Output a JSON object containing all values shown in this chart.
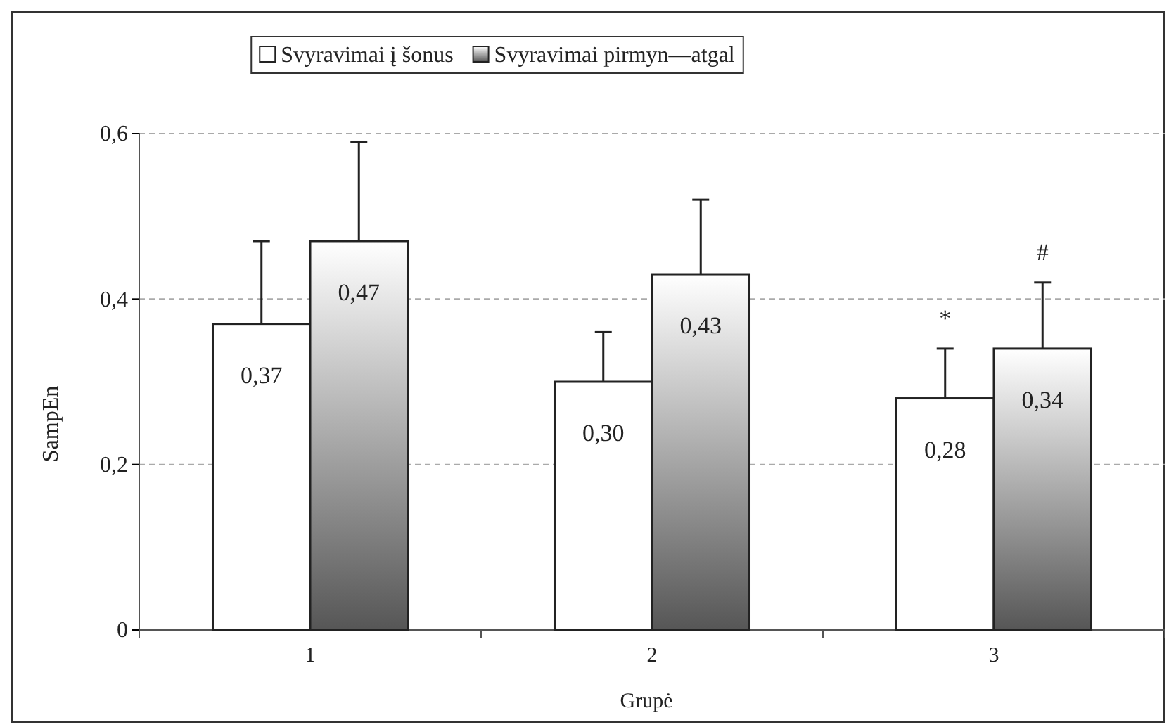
{
  "chart_data": {
    "type": "bar",
    "xlabel": "Grupė",
    "ylabel": "SampEn",
    "categories": [
      "1",
      "2",
      "3"
    ],
    "series": [
      {
        "name": "Svyravimai į šonus",
        "color": "#ffffff",
        "values": [
          0.37,
          0.3,
          0.28
        ],
        "errors": [
          0.1,
          0.06,
          0.06
        ],
        "value_labels": [
          "0,37",
          "0,30",
          "0,28"
        ]
      },
      {
        "name": "Svyravimai pirmyn—atgal",
        "color": "#888888",
        "values": [
          0.47,
          0.43,
          0.34
        ],
        "errors": [
          0.12,
          0.09,
          0.08
        ],
        "value_labels": [
          "0,47",
          "0,43",
          "0,34"
        ]
      }
    ],
    "ylim": [
      0,
      0.6
    ],
    "yticks": [
      {
        "value": 0,
        "label": "0"
      },
      {
        "value": 0.2,
        "label": "0,2"
      },
      {
        "value": 0.4,
        "label": "0,4"
      },
      {
        "value": 0.6,
        "label": "0,6"
      }
    ],
    "grid": "y",
    "legend": "top",
    "annotations": [
      "*",
      "#"
    ]
  }
}
